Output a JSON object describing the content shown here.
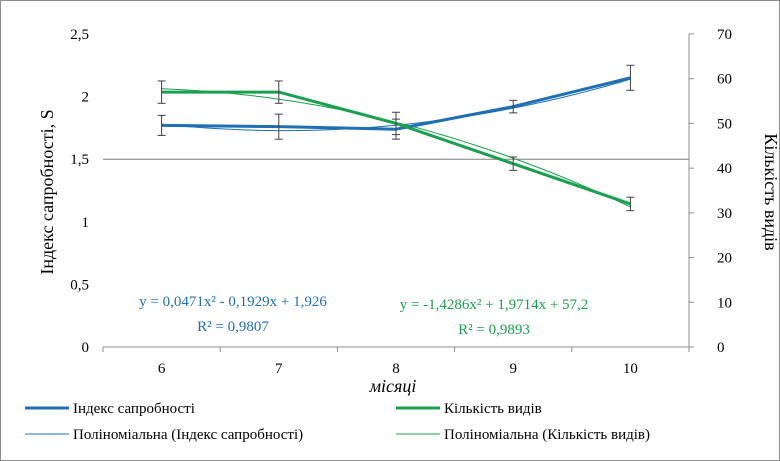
{
  "chart_data": {
    "type": "line",
    "xlabel": "місяці",
    "ylabel_left": "Індекс сапробності,  S",
    "ylabel_right": "Кількість видів",
    "categories": [
      "6",
      "7",
      "8",
      "9",
      "10"
    ],
    "y_left_ticks": [
      "0",
      "0,5",
      "1",
      "1,5",
      "2",
      "2,5"
    ],
    "y_right_ticks": [
      "0",
      "10",
      "20",
      "30",
      "40",
      "50",
      "60",
      "70"
    ],
    "ylim_left": [
      0,
      2.5
    ],
    "ylim_right": [
      0,
      70
    ],
    "grid": false,
    "reference_line_left": 1.5,
    "legend_position": "bottom",
    "series": [
      {
        "name": "Індекс сапробності",
        "axis": "left",
        "color": "#1f6fb4",
        "values": [
          1.77,
          1.76,
          1.74,
          1.92,
          2.15
        ],
        "errors": [
          0.08,
          0.1,
          0.08,
          0.05,
          0.1
        ]
      },
      {
        "name": "Кількість видів",
        "axis": "right",
        "color": "#1aa04e",
        "values": [
          57,
          57,
          50,
          41,
          32
        ],
        "errors": [
          2.5,
          2.5,
          2.5,
          1.5,
          1.5
        ]
      }
    ],
    "trendlines": [
      {
        "name": "Поліноміальна (Індекс сапробності)",
        "axis": "left",
        "color": "#1f6fb4",
        "coeffs": [
          0.0471,
          -0.1929,
          1.926
        ],
        "equation": "y = 0,0471x² - 0,1929x + 1,926",
        "r2": "R² = 0,9807"
      },
      {
        "name": "Поліноміальна (Кількість видів)",
        "axis": "right",
        "color": "#1aa04e",
        "coeffs": [
          -1.4286,
          1.9714,
          57.2
        ],
        "equation": "y = -1,4286x² + 1,9714x + 57,2",
        "r2": "R² = 0,9893"
      }
    ]
  }
}
